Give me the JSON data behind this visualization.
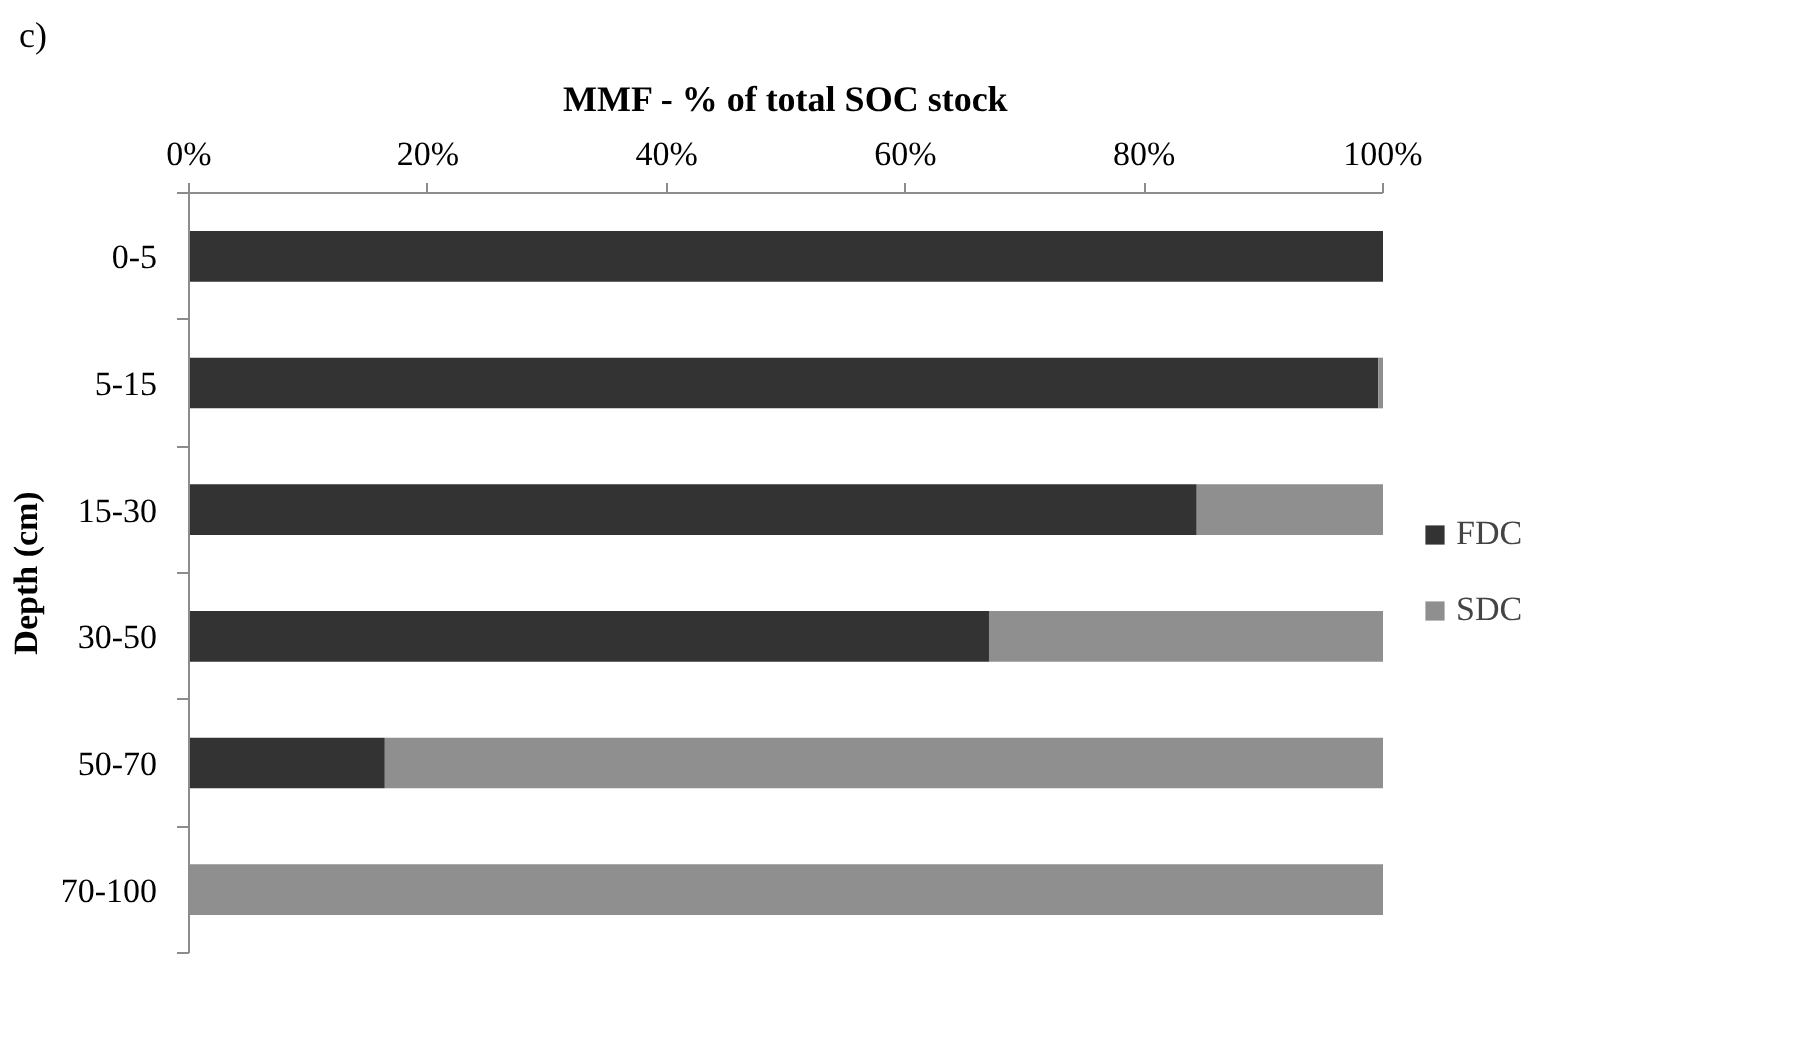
{
  "chart_data": {
    "type": "bar",
    "orientation": "horizontal",
    "stacked": true,
    "title": "MMF - % of total SOC stock",
    "ylabel": "Depth (cm)",
    "annotations": [
      "c)"
    ],
    "categories": [
      "0-5",
      "5-15",
      "15-30",
      "30-50",
      "50-70",
      "70-100"
    ],
    "series": [
      {
        "name": "FDC",
        "color": "#333333",
        "values": [
          100,
          99.6,
          84.4,
          67.0,
          16.4,
          0
        ]
      },
      {
        "name": "SDC",
        "color": "#8f8f8f",
        "values": [
          0,
          0.4,
          15.6,
          33.0,
          83.6,
          100
        ]
      }
    ],
    "xlim": [
      0,
      100
    ],
    "xticks": [
      {
        "value": 0,
        "label": "0%"
      },
      {
        "value": 20,
        "label": "20%"
      },
      {
        "value": 40,
        "label": "40%"
      },
      {
        "value": 60,
        "label": "60%"
      },
      {
        "value": 80,
        "label": "80%"
      },
      {
        "value": 100,
        "label": "100%"
      }
    ],
    "grid": false,
    "legend": "right"
  }
}
